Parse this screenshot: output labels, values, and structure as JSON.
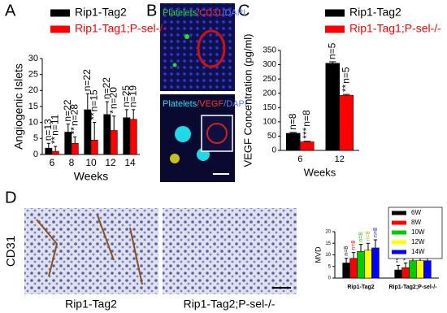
{
  "panel_letters": [
    "A",
    "B",
    "C",
    "D"
  ],
  "images": {
    "b_top": [
      "Platelets",
      "/CD31",
      "/DAPI"
    ],
    "b_bottom": [
      "Platelets",
      "/VEGF",
      "/DAPI"
    ],
    "d_side": "CD31",
    "d_left": "Rip1-Tag2",
    "d_right": "Rip1-Tag2;P-sel-/-"
  },
  "chart_data": [
    {
      "type": "bar",
      "y_label": "Angiogenic Islets",
      "x_label": "Weeks",
      "categories": [
        "6",
        "8",
        "10",
        "12",
        "14"
      ],
      "series": [
        {
          "name": "Rip1-Tag2",
          "color": "#000000",
          "values": [
            2,
            7,
            14,
            12.5,
            11.5
          ],
          "errors": [
            1.5,
            2.5,
            5,
            4,
            2.5
          ],
          "n_labels": [
            "n=13",
            "n=22",
            "n=22",
            "n=22",
            "n=25"
          ]
        },
        {
          "name": "Rip1-Tag1;P-sel-/-",
          "color": "#ff0000",
          "values": [
            1,
            3.5,
            4.5,
            7.5,
            11
          ],
          "errors": [
            1.5,
            2,
            5.5,
            4.5,
            3
          ],
          "n_labels": [
            "n=11",
            "n=28",
            "n=15",
            "n=20",
            "n=19"
          ],
          "significance": [
            "**",
            "**",
            "**",
            "*",
            null
          ]
        }
      ],
      "ylim": [
        0,
        30
      ],
      "yticks": [
        0,
        5,
        10,
        15,
        20,
        25,
        30
      ]
    },
    {
      "type": "bar",
      "y_label": "VEGF Concentration (pg/ml)",
      "x_label": "Weeks",
      "categories": [
        "6",
        "12"
      ],
      "series": [
        {
          "name": "Rip1-Tag2",
          "color": "#000000",
          "values": [
            60,
            305
          ],
          "errors": [
            3,
            5
          ],
          "n_labels": [
            "n=8",
            "n=5"
          ]
        },
        {
          "name": "Rip1-Tag1;P-sel-/-",
          "color": "#ff0000",
          "values": [
            30,
            193
          ],
          "errors": [
            2,
            3
          ],
          "n_labels": [
            "n=8",
            "n=5"
          ],
          "significance": [
            "***",
            "**"
          ]
        }
      ],
      "ylim": [
        0,
        350
      ],
      "yticks": [
        0,
        50,
        100,
        150,
        200,
        250,
        300,
        350
      ]
    },
    {
      "type": "bar",
      "y_label": "MVD",
      "categories": [
        "Rip1-Tag2",
        "Rip1-Tag2;P-sel-/-"
      ],
      "series": [
        {
          "name": "6W",
          "color": "#000000",
          "values": [
            6.5,
            3.5
          ],
          "errors": [
            2,
            2
          ],
          "n_labels": [
            "n=8",
            "n=8"
          ],
          "significance": [
            null,
            "**"
          ]
        },
        {
          "name": "8W",
          "color": "#ff0000",
          "values": [
            8.5,
            4.5
          ],
          "errors": [
            2.5,
            2
          ],
          "n_labels": [
            "n=8",
            "n=8"
          ],
          "significance": [
            null,
            "**"
          ]
        },
        {
          "name": "10W",
          "color": "#00cc00",
          "values": [
            11.5,
            7.5
          ],
          "errors": [
            3,
            2.5
          ],
          "n_labels": [
            "n=8",
            "n=8"
          ],
          "significance": [
            null,
            "**"
          ]
        },
        {
          "name": "12W",
          "color": "#ffff00",
          "values": [
            12,
            7.5
          ],
          "errors": [
            3,
            2.5
          ],
          "n_labels": [
            "n=8",
            "n=8"
          ],
          "significance": [
            null,
            "**"
          ]
        },
        {
          "name": "14W",
          "color": "#0000ff",
          "values": [
            13,
            7.5
          ],
          "errors": [
            3.5,
            3
          ],
          "n_labels": [
            "n=8",
            "n=8"
          ],
          "significance": [
            null,
            "**"
          ]
        }
      ],
      "ylim": [
        0,
        20
      ],
      "yticks": [
        0,
        5,
        10,
        15,
        20
      ]
    }
  ]
}
